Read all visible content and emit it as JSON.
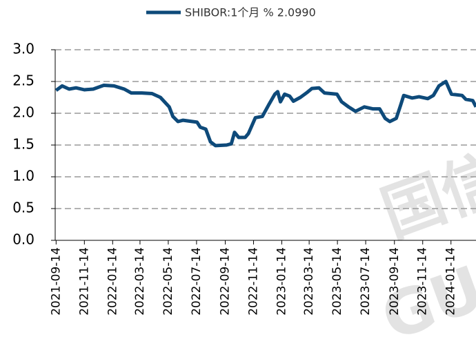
{
  "chart_data": {
    "type": "line",
    "watermark": [
      "国信",
      "GU"
    ],
    "series": [
      {
        "name": "SHIBOR:1个月 % 2.0990",
        "color": "#0e4a7a",
        "x": [
          "2021-09-14",
          "2021-09-27",
          "2021-10-12",
          "2021-10-27",
          "2021-11-14",
          "2021-12-03",
          "2021-12-26",
          "2022-01-17",
          "2022-02-08",
          "2022-02-23",
          "2022-03-18",
          "2022-04-09",
          "2022-04-27",
          "2022-05-16",
          "2022-05-24",
          "2022-06-04",
          "2022-06-15",
          "2022-07-15",
          "2022-07-22",
          "2022-08-03",
          "2022-08-13",
          "2022-08-24",
          "2022-09-17",
          "2022-09-27",
          "2022-10-04",
          "2022-10-13",
          "2022-10-27",
          "2022-11-03",
          "2022-11-18",
          "2022-12-03",
          "2022-12-18",
          "2022-12-30",
          "2023-01-05",
          "2023-01-11",
          "2023-01-20",
          "2023-01-31",
          "2023-02-08",
          "2023-02-23",
          "2023-03-10",
          "2023-03-20",
          "2023-04-04",
          "2023-04-16",
          "2023-05-13",
          "2023-05-23",
          "2023-06-07",
          "2023-06-22",
          "2023-07-11",
          "2023-07-29",
          "2023-08-13",
          "2023-08-25",
          "2023-09-04",
          "2023-09-18",
          "2023-09-27",
          "2023-10-04",
          "2023-10-22",
          "2023-11-06",
          "2023-11-25",
          "2023-12-07",
          "2023-12-19",
          "2024-01-03",
          "2024-01-15",
          "2024-02-07",
          "2024-02-15",
          "2024-03-01",
          "2024-03-08"
        ],
        "values": [
          2.36,
          2.43,
          2.38,
          2.4,
          2.37,
          2.38,
          2.44,
          2.43,
          2.38,
          2.32,
          2.32,
          2.31,
          2.25,
          2.1,
          1.95,
          1.87,
          1.89,
          1.86,
          1.78,
          1.75,
          1.55,
          1.49,
          1.5,
          1.52,
          1.7,
          1.62,
          1.62,
          1.68,
          1.93,
          1.95,
          2.15,
          2.3,
          2.34,
          2.18,
          2.3,
          2.27,
          2.19,
          2.25,
          2.33,
          2.39,
          2.4,
          2.32,
          2.3,
          2.18,
          2.1,
          2.03,
          2.1,
          2.07,
          2.07,
          1.92,
          1.87,
          1.92,
          2.12,
          2.28,
          2.24,
          2.26,
          2.23,
          2.28,
          2.43,
          2.5,
          2.3,
          2.28,
          2.22,
          2.2,
          2.1
        ]
      }
    ],
    "xlim": [
      "2021-09-12",
      "2024-03-08"
    ],
    "xticks": [
      "2021-09-14",
      "2021-11-14",
      "2022-01-14",
      "2022-03-14",
      "2022-05-14",
      "2022-07-14",
      "2022-09-14",
      "2022-11-14",
      "2023-01-14",
      "2023-03-14",
      "2023-05-14",
      "2023-07-14",
      "2023-09-14",
      "2023-11-14",
      "2024-01-14"
    ],
    "ylim": [
      0,
      3
    ],
    "yticks": [
      {
        "value": 0,
        "label": "0.0"
      },
      {
        "value": 0.5,
        "label": "0.5"
      },
      {
        "value": 1,
        "label": "1.0"
      },
      {
        "value": 1.5,
        "label": "1.5"
      },
      {
        "value": 2,
        "label": "2.0"
      },
      {
        "value": 2.5,
        "label": "2.5"
      },
      {
        "value": 3,
        "label": "3.0"
      }
    ],
    "grid": true
  }
}
